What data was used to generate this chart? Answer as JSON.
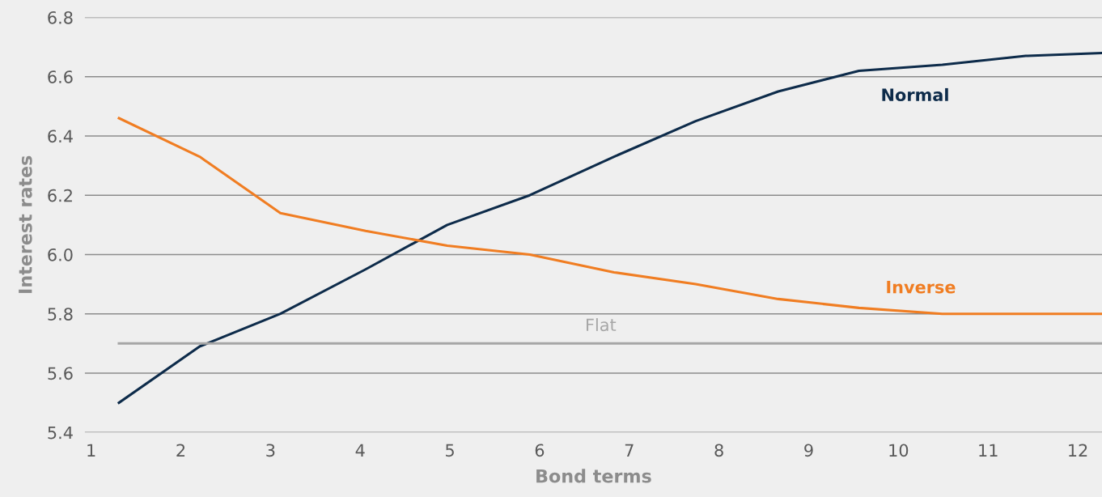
{
  "chart_data": {
    "type": "line",
    "xlabel": "Bond terms",
    "ylabel": "Interest rates",
    "xlim": [
      0.93,
      12.27
    ],
    "xticks": [
      1,
      2,
      3,
      4,
      5,
      6,
      7,
      8,
      9,
      10,
      11,
      12
    ],
    "ylim": [
      5.4,
      6.8
    ],
    "yticks": [
      {
        "value": 5.4,
        "label": "5.4"
      },
      {
        "value": 5.6,
        "label": "5.6"
      },
      {
        "value": 5.8,
        "label": "5.8"
      },
      {
        "value": 6.0,
        "label": "6.0"
      },
      {
        "value": 6.2,
        "label": "6.2"
      },
      {
        "value": 6.4,
        "label": "6.4"
      },
      {
        "value": 6.6,
        "label": "6.6"
      },
      {
        "value": 6.8,
        "label": "6.8"
      }
    ],
    "grid": "y",
    "legend": false,
    "marker": "none",
    "line_style": "solid",
    "series": [
      {
        "name": "Normal",
        "color": "#0d2b4a",
        "x": [
          1.31,
          2.21,
          3.11,
          4.06,
          4.97,
          5.89,
          6.83,
          7.74,
          8.66,
          9.56,
          10.49,
          11.42,
          12.27
        ],
        "values": [
          5.5,
          5.69,
          5.8,
          5.95,
          6.1,
          6.2,
          6.33,
          6.45,
          6.55,
          6.62,
          6.64,
          6.67,
          6.68
        ]
      },
      {
        "name": "Inverse",
        "color": "#f07d22",
        "x": [
          1.31,
          2.21,
          3.11,
          4.06,
          4.97,
          5.89,
          6.83,
          7.74,
          8.66,
          9.56,
          10.49,
          11.42,
          12.27
        ],
        "values": [
          6.46,
          6.33,
          6.14,
          6.08,
          6.03,
          6.0,
          5.94,
          5.9,
          5.85,
          5.82,
          5.8,
          5.8,
          5.8
        ]
      },
      {
        "name": "Flat",
        "color": "#a6a6a6",
        "x": [
          1.31,
          12.27
        ],
        "values": [
          5.7,
          5.7
        ]
      }
    ]
  }
}
